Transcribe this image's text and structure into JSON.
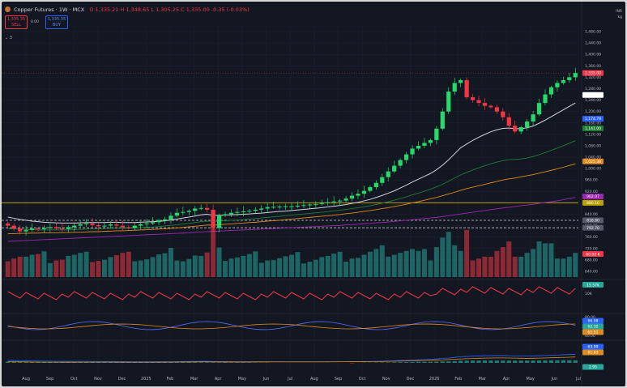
{
  "header": {
    "symbol_title": "Copper Futures · 1W · MCX",
    "ohlc": "O 1,335.21 H 1,348.65 L 1,305.25 C 1,335.00 -0.35 (-0.03%)",
    "sell_price": "1,335.35",
    "sell_label": "SELL",
    "spread": "0.00",
    "buy_price": "1,335.35",
    "buy_label": "BUY",
    "indicators_toggle": "3"
  },
  "corner": {
    "currency": "INR",
    "unit": "kg"
  },
  "colors": {
    "background": "#131722",
    "up": "#26d96b",
    "down": "#f23645",
    "grid": "#1f2330"
  },
  "price_axis": {
    "ticks": [
      "1,480.00",
      "1,440.00",
      "1,400.00",
      "1,360.00",
      "1,320.00",
      "1,280.00",
      "1,240.00",
      "1,200.00",
      "1,160.00",
      "1,120.00",
      "1,080.00",
      "1,040.00",
      "1,000.00",
      "960.00",
      "920.00",
      "880.00",
      "840.00",
      "800.00",
      "760.00",
      "720.00",
      "680.00",
      "640.00"
    ],
    "ticks_numeric": [
      1480,
      1440,
      1400,
      1360,
      1320,
      1280,
      1240,
      1200,
      1160,
      1120,
      1080,
      1040,
      1000,
      960,
      920,
      880,
      840,
      800,
      760,
      720,
      680,
      640
    ],
    "labels": [
      {
        "text": "1,335.00",
        "value": 1335,
        "color": "#f23645"
      },
      {
        "text": "1,257.99",
        "value": 1257.99,
        "color": "#ffffff"
      },
      {
        "text": "1,174.79",
        "value": 1174.79,
        "color": "#2962ff"
      },
      {
        "text": "1,141.00",
        "value": 1141,
        "color": "#1e7e34"
      },
      {
        "text": "1,025.38",
        "value": 1025.38,
        "color": "#e08a1e"
      },
      {
        "text": "902.07",
        "value": 902.07,
        "color": "#9c27b0"
      },
      {
        "text": "880.10",
        "value": 880.1,
        "color": "#b8a000"
      },
      {
        "text": "818.80",
        "value": 818.8,
        "color": "#555b68"
      },
      {
        "text": "792.70",
        "value": 792.7,
        "color": "#555b68"
      }
    ]
  },
  "volume_label": {
    "text": "60.02 K",
    "color": "#f23645"
  },
  "time_axis": [
    "Aug",
    "Sep",
    "Oct",
    "Nov",
    "Dec",
    "2025",
    "Feb",
    "Mar",
    "Apr",
    "May",
    "Jun",
    "Jul",
    "Aug",
    "Sep",
    "Oct",
    "Nov",
    "Dec",
    "2026",
    "Feb",
    "Mar",
    "Apr",
    "May",
    "Jun",
    "Jul"
  ],
  "indicator1": {
    "label_value": "15.57K",
    "label_color": "#26a69a",
    "tick": "10K"
  },
  "indicator2": {
    "ticks": [
      "80.00",
      "40.00"
    ],
    "labels": [
      {
        "text": "66.98",
        "color": "#2962ff"
      },
      {
        "text": "62.32",
        "color": "#26a69a"
      },
      {
        "text": "61.51",
        "color": "#e08a1e"
      }
    ]
  },
  "indicator3": {
    "labels": [
      {
        "text": "63.99",
        "color": "#2962ff"
      },
      {
        "text": "61.03",
        "color": "#e08a1e"
      },
      {
        "text": "2.95",
        "color": "#26a69a"
      }
    ]
  },
  "chart_data": {
    "type": "candlestick",
    "title": "Copper Futures · 1W · MCX",
    "ylim": [
      620,
      1500
    ],
    "x_categories": [
      "Aug",
      "Sep",
      "Oct",
      "Nov",
      "Dec",
      "2025",
      "Feb",
      "Mar",
      "Apr",
      "May",
      "Jun",
      "Jul",
      "Aug",
      "Sep",
      "Oct",
      "Nov",
      "Dec",
      "2026",
      "Feb",
      "Mar",
      "Apr",
      "May",
      "Jun",
      "Jul"
    ],
    "closes": [
      800,
      790,
      780,
      785,
      790,
      788,
      792,
      795,
      790,
      788,
      795,
      800,
      805,
      808,
      802,
      798,
      800,
      804,
      800,
      795,
      792,
      800,
      805,
      808,
      812,
      818,
      822,
      835,
      845,
      848,
      852,
      860,
      862,
      856,
      792,
      836,
      840,
      845,
      848,
      850,
      852,
      856,
      860,
      865,
      866,
      867,
      868,
      868,
      870,
      872,
      874,
      876,
      880,
      882,
      885,
      888,
      895,
      905,
      912,
      922,
      935,
      950,
      970,
      990,
      1010,
      1030,
      1050,
      1070,
      1080,
      1090,
      1100,
      1140,
      1200,
      1270,
      1300,
      1310,
      1250,
      1240,
      1230,
      1220,
      1215,
      1200,
      1180,
      1150,
      1130,
      1145,
      1165,
      1190,
      1230,
      1260,
      1285,
      1300,
      1310,
      1320,
      1335
    ],
    "ema_white": [
      830,
      826,
      822,
      819,
      816,
      814,
      812,
      811,
      810,
      809,
      809,
      809,
      810,
      811,
      811,
      811,
      811,
      812,
      812,
      811,
      811,
      811,
      812,
      813,
      814,
      815,
      817,
      820,
      823,
      827,
      830,
      834,
      838,
      840,
      836,
      836,
      837,
      838,
      839,
      840,
      841,
      843,
      844,
      846,
      848,
      850,
      851,
      853,
      855,
      857,
      859,
      861,
      863,
      866,
      868,
      871,
      874,
      878,
      882,
      887,
      892,
      899,
      906,
      914,
      922,
      932,
      942,
      953,
      963,
      973,
      983,
      996,
      1012,
      1031,
      1052,
      1073,
      1086,
      1099,
      1110,
      1120,
      1129,
      1136,
      1141,
      1142,
      1140,
      1140,
      1143,
      1149,
      1159,
      1170,
      1182,
      1194,
      1206,
      1218,
      1230
    ],
    "ema_green": [
      790,
      789,
      788,
      787,
      786,
      785,
      785,
      785,
      785,
      785,
      785,
      786,
      787,
      788,
      789,
      789,
      790,
      791,
      791,
      791,
      791,
      792,
      793,
      794,
      795,
      797,
      799,
      801,
      803,
      806,
      808,
      811,
      814,
      816,
      815,
      816,
      817,
      819,
      820,
      821,
      823,
      825,
      827,
      829,
      831,
      833,
      835,
      837,
      839,
      841,
      843,
      845,
      847,
      849,
      852,
      854,
      857,
      860,
      863,
      866,
      870,
      874,
      879,
      884,
      889,
      895,
      901,
      908,
      914,
      921,
      928,
      936,
      945,
      956,
      967,
      978,
      987,
      995,
      1003,
      1010,
      1017,
      1023,
      1028,
      1031,
      1032,
      1034,
      1037,
      1042,
      1049,
      1056,
      1064,
      1072,
      1080,
      1089,
      1098
    ],
    "ema_orange": [
      772,
      772,
      773,
      773,
      774,
      774,
      775,
      775,
      775,
      776,
      776,
      777,
      777,
      778,
      779,
      779,
      780,
      781,
      782,
      782,
      783,
      784,
      785,
      786,
      787,
      788,
      789,
      791,
      792,
      794,
      796,
      798,
      800,
      802,
      802,
      803,
      805,
      806,
      808,
      809,
      811,
      812,
      814,
      816,
      817,
      819,
      821,
      823,
      825,
      827,
      829,
      831,
      833,
      835,
      837,
      839,
      842,
      844,
      847,
      850,
      853,
      856,
      860,
      863,
      867,
      871,
      875,
      880,
      884,
      889,
      894,
      899,
      905,
      911,
      917,
      924,
      930,
      935,
      940,
      945,
      950,
      955,
      960,
      964,
      967,
      971,
      975,
      979,
      984,
      989,
      994,
      999,
      1005,
      1011,
      1017
    ],
    "ema_purple": [
      745,
      746,
      747,
      748,
      749,
      750,
      751,
      752,
      753,
      754,
      755,
      756,
      757,
      758,
      759,
      760,
      761,
      762,
      763,
      764,
      765,
      766,
      767,
      768,
      769,
      770,
      771,
      772,
      773,
      774,
      775,
      777,
      778,
      779,
      780,
      781,
      782,
      783,
      784,
      785,
      786,
      787,
      788,
      789,
      790,
      791,
      792,
      793,
      794,
      795,
      796,
      797,
      798,
      799,
      800,
      801,
      803,
      804,
      805,
      807,
      808,
      810,
      811,
      813,
      815,
      817,
      819,
      821,
      823,
      825,
      827,
      829,
      832,
      835,
      838,
      841,
      844,
      847,
      850,
      853,
      856,
      859,
      862,
      864,
      867,
      870,
      872,
      875,
      878,
      881,
      884,
      887,
      891,
      895,
      899
    ]
  }
}
